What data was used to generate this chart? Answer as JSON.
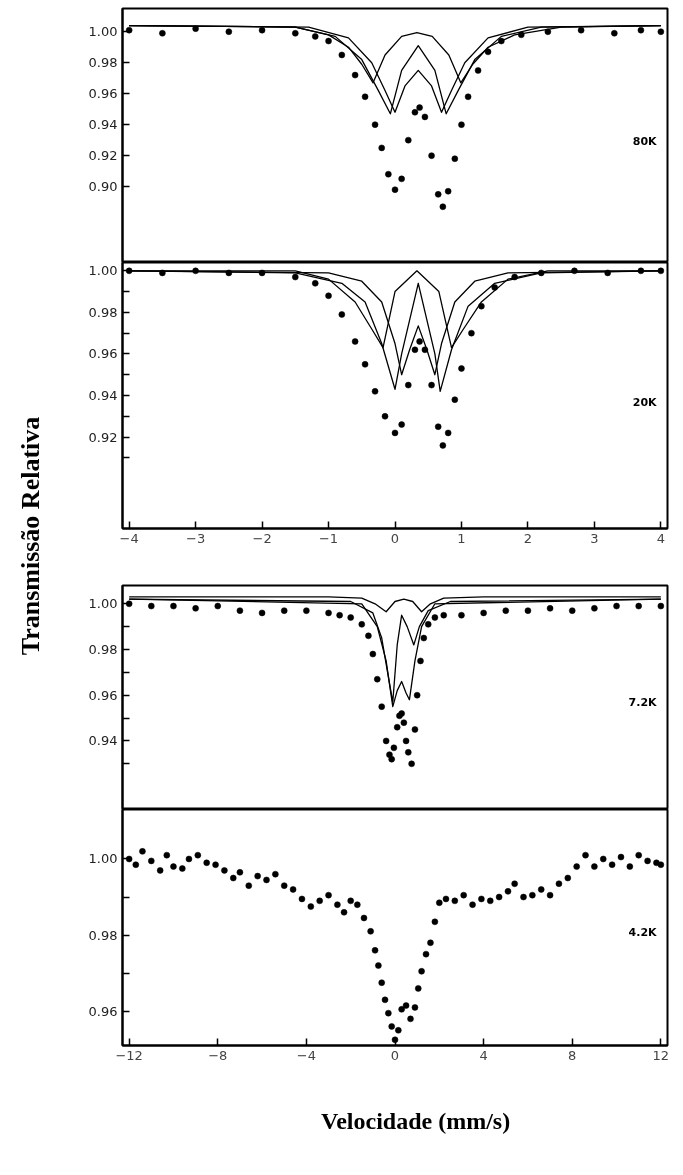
{
  "chart_data": [
    {
      "type": "scatter",
      "ylabel": "Transmissão Relativa",
      "annotations": [
        "80K"
      ],
      "line_style": "solid",
      "tick_labels": "y",
      "xlim": [
        -4.1,
        4.1
      ],
      "ylim": [
        0.851,
        1.015
      ],
      "yticks": [
        {
          "value": 0.9,
          "label": "0.90"
        },
        {
          "value": 0.92,
          "label": "0.92"
        },
        {
          "value": 0.94,
          "label": "0.94"
        },
        {
          "value": 0.96,
          "label": "0.96"
        },
        {
          "value": 0.98,
          "label": "0.98"
        },
        {
          "value": 1.0,
          "label": "1.00"
        }
      ],
      "series": [
        {
          "color": "#000000",
          "marker": "circle",
          "x": [
            -4,
            -3.5,
            -3,
            -2.5,
            -2,
            -1.5,
            -1.2,
            -1.0,
            -0.8,
            -0.6,
            -0.45,
            -0.3,
            -0.2,
            -0.1,
            0.0,
            0.1,
            0.2,
            0.3,
            0.37,
            0.45,
            0.55,
            0.65,
            0.72,
            0.8,
            0.9,
            1.0,
            1.1,
            1.25,
            1.4,
            1.6,
            1.9,
            2.3,
            2.8,
            3.3,
            3.7,
            4.0
          ],
          "values": [
            1.001,
            0.999,
            1.002,
            1.0,
            1.001,
            0.999,
            0.997,
            0.994,
            0.985,
            0.972,
            0.958,
            0.94,
            0.925,
            0.908,
            0.898,
            0.905,
            0.93,
            0.948,
            0.951,
            0.945,
            0.92,
            0.895,
            0.887,
            0.897,
            0.918,
            0.94,
            0.958,
            0.975,
            0.987,
            0.994,
            0.998,
            1.0,
            1.001,
            0.999,
            1.001,
            1.0
          ]
        },
        {
          "type": "line",
          "color": "#000000",
          "x": [
            -4,
            -1.5,
            -1.0,
            -0.7,
            -0.5,
            -0.33,
            -0.15,
            0.1,
            0.33,
            0.56,
            0.81,
            0.99,
            1.17,
            1.4,
            1.8,
            2.5,
            4
          ],
          "values": [
            1.004,
            1.003,
            0.998,
            0.99,
            0.979,
            0.967,
            0.985,
            0.997,
            0.9995,
            0.997,
            0.985,
            0.967,
            0.979,
            0.99,
            0.998,
            1.003,
            1.004
          ]
        },
        {
          "type": "line",
          "color": "#000000",
          "x": [
            -4,
            -1.5,
            -0.9,
            -0.5,
            -0.25,
            -0.07,
            0.1,
            0.35,
            0.6,
            0.77,
            0.95,
            1.2,
            1.6,
            2.2,
            4
          ],
          "values": [
            1.004,
            1.003,
            0.997,
            0.982,
            0.962,
            0.947,
            0.975,
            0.991,
            0.975,
            0.947,
            0.962,
            0.982,
            0.997,
            1.003,
            1.004
          ]
        },
        {
          "type": "line",
          "color": "#000000",
          "x": [
            -4,
            -1.3,
            -0.7,
            -0.35,
            -0.15,
            0.0,
            0.15,
            0.35,
            0.55,
            0.7,
            0.85,
            1.05,
            1.4,
            2.0,
            4
          ],
          "values": [
            1.004,
            1.003,
            0.996,
            0.98,
            0.962,
            0.948,
            0.965,
            0.975,
            0.965,
            0.948,
            0.962,
            0.98,
            0.996,
            1.003,
            1.004
          ]
        }
      ]
    },
    {
      "type": "scatter",
      "annotations": [
        "20K"
      ],
      "line_style": "solid",
      "xlim": [
        -4.1,
        4.1
      ],
      "ylim": [
        0.876,
        1.004
      ],
      "xticks": [
        -4,
        -3,
        -2,
        -1,
        0,
        1,
        2,
        3,
        4
      ],
      "yticks": [
        {
          "value": 0.91,
          "label": null
        },
        {
          "value": 0.92,
          "label": "0.92"
        },
        {
          "value": 0.93,
          "label": null
        },
        {
          "value": 0.94,
          "label": "0.94"
        },
        {
          "value": 0.95,
          "label": null
        },
        {
          "value": 0.96,
          "label": "0.96"
        },
        {
          "value": 0.97,
          "label": null
        },
        {
          "value": 0.98,
          "label": "0.98"
        },
        {
          "value": 0.99,
          "label": null
        },
        {
          "value": 1.0,
          "label": "1.00"
        }
      ],
      "series": [
        {
          "color": "#000000",
          "marker": "circle",
          "x": [
            -4,
            -3.5,
            -3,
            -2.5,
            -2,
            -1.5,
            -1.2,
            -1.0,
            -0.8,
            -0.6,
            -0.45,
            -0.3,
            -0.15,
            0.0,
            0.1,
            0.2,
            0.3,
            0.37,
            0.45,
            0.55,
            0.65,
            0.72,
            0.8,
            0.9,
            1.0,
            1.15,
            1.3,
            1.5,
            1.8,
            2.2,
            2.7,
            3.2,
            3.7,
            4.0
          ],
          "values": [
            1.0,
            0.999,
            1.0,
            0.999,
            0.999,
            0.997,
            0.994,
            0.988,
            0.979,
            0.966,
            0.955,
            0.942,
            0.93,
            0.922,
            0.926,
            0.945,
            0.962,
            0.966,
            0.962,
            0.945,
            0.925,
            0.916,
            0.922,
            0.938,
            0.953,
            0.97,
            0.983,
            0.992,
            0.997,
            0.999,
            1.0,
            0.999,
            1.0,
            1.0
          ]
        },
        {
          "type": "line",
          "color": "#000000",
          "x": [
            -4,
            -1.5,
            -1.0,
            -0.6,
            -0.35,
            -0.18,
            0.0,
            0.33,
            0.66,
            0.85,
            1.03,
            1.3,
            1.7,
            2.3,
            4
          ],
          "values": [
            1.0,
            1.0,
            0.996,
            0.985,
            0.972,
            0.963,
            0.99,
            1.0,
            0.99,
            0.963,
            0.972,
            0.985,
            0.996,
            1.0,
            1.0
          ]
        },
        {
          "type": "line",
          "color": "#000000",
          "x": [
            -4,
            -1.5,
            -0.8,
            -0.45,
            -0.2,
            0.0,
            0.1,
            0.35,
            0.6,
            0.68,
            0.85,
            1.1,
            1.5,
            2.2,
            4
          ],
          "values": [
            1.0,
            0.999,
            0.994,
            0.985,
            0.965,
            0.943,
            0.96,
            0.994,
            0.96,
            0.942,
            0.962,
            0.983,
            0.994,
            0.999,
            1.0
          ]
        },
        {
          "type": "line",
          "color": "#000000",
          "x": [
            -4,
            -1.0,
            -0.5,
            -0.2,
            0.0,
            0.1,
            0.22,
            0.35,
            0.48,
            0.6,
            0.7,
            0.9,
            1.2,
            1.7,
            4
          ],
          "values": [
            1.0,
            0.999,
            0.995,
            0.985,
            0.965,
            0.95,
            0.962,
            0.9735,
            0.962,
            0.95,
            0.965,
            0.985,
            0.995,
            0.999,
            1.0
          ]
        }
      ]
    },
    {
      "type": "scatter",
      "annotations": [
        "7.2K"
      ],
      "line_style": "solid",
      "tick_labels": "y",
      "xlim": [
        -12.3,
        12.3
      ],
      "ylim": [
        0.91,
        1.008
      ],
      "yticks": [
        {
          "value": 0.93,
          "label": null
        },
        {
          "value": 0.94,
          "label": "0.94"
        },
        {
          "value": 0.95,
          "label": null
        },
        {
          "value": 0.96,
          "label": "0.96"
        },
        {
          "value": 0.97,
          "label": null
        },
        {
          "value": 0.98,
          "label": "0.98"
        },
        {
          "value": 0.99,
          "label": null
        },
        {
          "value": 1.0,
          "label": "1.00"
        }
      ],
      "series": [
        {
          "color": "#000000",
          "marker": "circle",
          "x": [
            -12,
            -11,
            -10,
            -9,
            -8,
            -7,
            -6,
            -5,
            -4,
            -3,
            -2.5,
            -2,
            -1.5,
            -1.2,
            -1.0,
            -0.8,
            -0.6,
            -0.4,
            -0.25,
            -0.15,
            -0.05,
            0.1,
            0.2,
            0.3,
            0.4,
            0.5,
            0.6,
            0.75,
            0.9,
            1.0,
            1.15,
            1.3,
            1.5,
            1.8,
            2.2,
            3,
            4,
            5,
            6,
            7,
            8,
            9,
            10,
            11,
            12
          ],
          "values": [
            1.0,
            0.999,
            0.999,
            0.998,
            0.999,
            0.997,
            0.996,
            0.997,
            0.997,
            0.996,
            0.995,
            0.994,
            0.991,
            0.986,
            0.978,
            0.967,
            0.955,
            0.94,
            0.934,
            0.932,
            0.937,
            0.946,
            0.951,
            0.952,
            0.948,
            0.94,
            0.935,
            0.93,
            0.945,
            0.96,
            0.975,
            0.985,
            0.991,
            0.994,
            0.995,
            0.995,
            0.996,
            0.997,
            0.997,
            0.998,
            0.997,
            0.998,
            0.999,
            0.999,
            0.999
          ]
        },
        {
          "type": "line",
          "color": "#000000",
          "x": [
            -12,
            -3,
            -1.5,
            -0.9,
            -0.4,
            0.0,
            0.4,
            0.8,
            1.2,
            1.6,
            2.2,
            4,
            12
          ],
          "values": [
            1.003,
            1.003,
            1.0025,
            1.0,
            0.9965,
            1.001,
            1.002,
            1.001,
            0.9965,
            1.0,
            1.0025,
            1.003,
            1.003
          ]
        },
        {
          "type": "line",
          "color": "#000000",
          "x": [
            -12,
            -2,
            -1.0,
            -0.6,
            -0.3,
            -0.1,
            0.1,
            0.3,
            0.55,
            0.85,
            1.1,
            1.5,
            2.5,
            12
          ],
          "values": [
            1.002,
            1.001,
            0.996,
            0.985,
            0.968,
            0.957,
            0.982,
            0.995,
            0.99,
            0.982,
            0.99,
            0.997,
            1.001,
            1.002
          ]
        },
        {
          "type": "line",
          "color": "#000000",
          "x": [
            -12,
            -1.5,
            -0.8,
            -0.4,
            -0.1,
            0.1,
            0.3,
            0.5,
            0.65,
            0.9,
            1.2,
            1.8,
            12
          ],
          "values": [
            1.002,
            1.0,
            0.99,
            0.975,
            0.955,
            0.962,
            0.966,
            0.961,
            0.958,
            0.975,
            0.99,
            1.0,
            1.002
          ]
        }
      ]
    },
    {
      "type": "scatter",
      "xlabel": "Velocidade (mm/s)",
      "annotations": [
        "4.2K"
      ],
      "xlim": [
        -12.3,
        12.3
      ],
      "ylim": [
        0.951,
        1.013
      ],
      "xticks": [
        -12,
        -8,
        -4,
        0,
        4,
        8,
        12
      ],
      "yticks": [
        {
          "value": 0.96,
          "label": "0.96"
        },
        {
          "value": 0.97,
          "label": null
        },
        {
          "value": 0.98,
          "label": "0.98"
        },
        {
          "value": 0.99,
          "label": null
        },
        {
          "value": 1.0,
          "label": "1.00"
        }
      ],
      "series": [
        {
          "color": "#000000",
          "marker": "circle",
          "x": [
            -12,
            -11.7,
            -11.4,
            -11,
            -10.6,
            -10.3,
            -10,
            -9.6,
            -9.3,
            -8.9,
            -8.5,
            -8.1,
            -7.7,
            -7.3,
            -7.0,
            -6.6,
            -6.2,
            -5.8,
            -5.4,
            -5.0,
            -4.6,
            -4.2,
            -3.8,
            -3.4,
            -3.0,
            -2.6,
            -2.3,
            -2.0,
            -1.7,
            -1.4,
            -1.1,
            -0.9,
            -0.75,
            -0.6,
            -0.45,
            -0.3,
            -0.15,
            0.0,
            0.15,
            0.3,
            0.5,
            0.7,
            0.9,
            1.05,
            1.2,
            1.4,
            1.6,
            1.8,
            2.0,
            2.3,
            2.7,
            3.1,
            3.5,
            3.9,
            4.3,
            4.7,
            5.1,
            5.4,
            5.8,
            6.2,
            6.6,
            7.0,
            7.4,
            7.8,
            8.2,
            8.6,
            9.0,
            9.4,
            9.8,
            10.2,
            10.6,
            11.0,
            11.4,
            11.8,
            12
          ],
          "values": [
            1.0,
            0.9985,
            1.002,
            0.9995,
            0.997,
            1.001,
            0.998,
            0.9975,
            1.0,
            1.001,
            0.999,
            0.9985,
            0.997,
            0.995,
            0.9965,
            0.993,
            0.9955,
            0.9945,
            0.996,
            0.993,
            0.992,
            0.9895,
            0.9875,
            0.989,
            0.9905,
            0.988,
            0.986,
            0.989,
            0.988,
            0.9845,
            0.981,
            0.976,
            0.972,
            0.9675,
            0.963,
            0.9595,
            0.956,
            0.9525,
            0.955,
            0.9605,
            0.9615,
            0.958,
            0.961,
            0.966,
            0.9705,
            0.975,
            0.978,
            0.9835,
            0.9885,
            0.9895,
            0.989,
            0.9905,
            0.988,
            0.9895,
            0.989,
            0.99,
            0.9915,
            0.9935,
            0.99,
            0.9905,
            0.992,
            0.9905,
            0.9935,
            0.995,
            0.998,
            1.001,
            0.998,
            1.0,
            0.9985,
            1.0005,
            0.998,
            1.001,
            0.9995,
            0.999,
            0.9985
          ]
        }
      ]
    }
  ]
}
